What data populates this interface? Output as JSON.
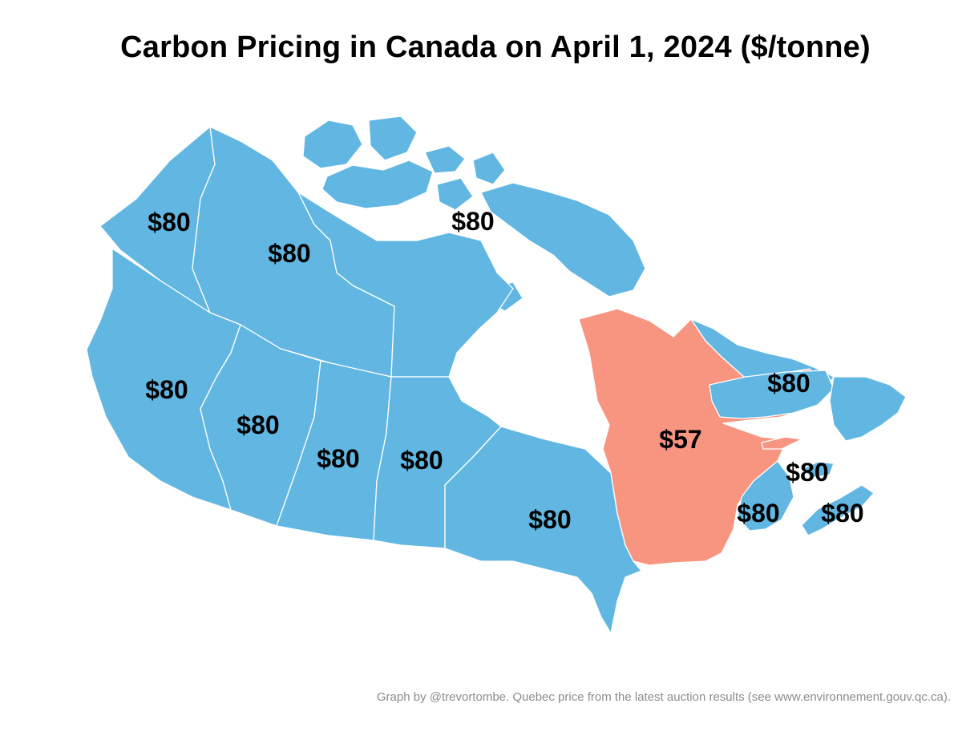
{
  "title": "Carbon Pricing in Canada on April 1, 2024 ($/tonne)",
  "credit": "Graph by @trevortombe. Quebec price from the latest auction results (see www.environnement.gouv.qc.ca).",
  "colors": {
    "federal_backstop": "#62B7E2",
    "quebec_cap_and_trade": "#F89581",
    "water": "#FFFFFF"
  },
  "regions": {
    "yukon": {
      "price": "$80"
    },
    "northwest_territories": {
      "price": "$80"
    },
    "nunavut": {
      "price": "$80"
    },
    "british_columbia": {
      "price": "$80"
    },
    "alberta": {
      "price": "$80"
    },
    "saskatchewan": {
      "price": "$80"
    },
    "manitoba": {
      "price": "$80"
    },
    "ontario": {
      "price": "$80"
    },
    "quebec": {
      "price": "$57"
    },
    "newfoundland_and_labrador": {
      "price": "$80"
    },
    "new_brunswick": {
      "price": "$80"
    },
    "prince_edward_island": {
      "price": "$80"
    },
    "nova_scotia": {
      "price": "$80"
    }
  }
}
